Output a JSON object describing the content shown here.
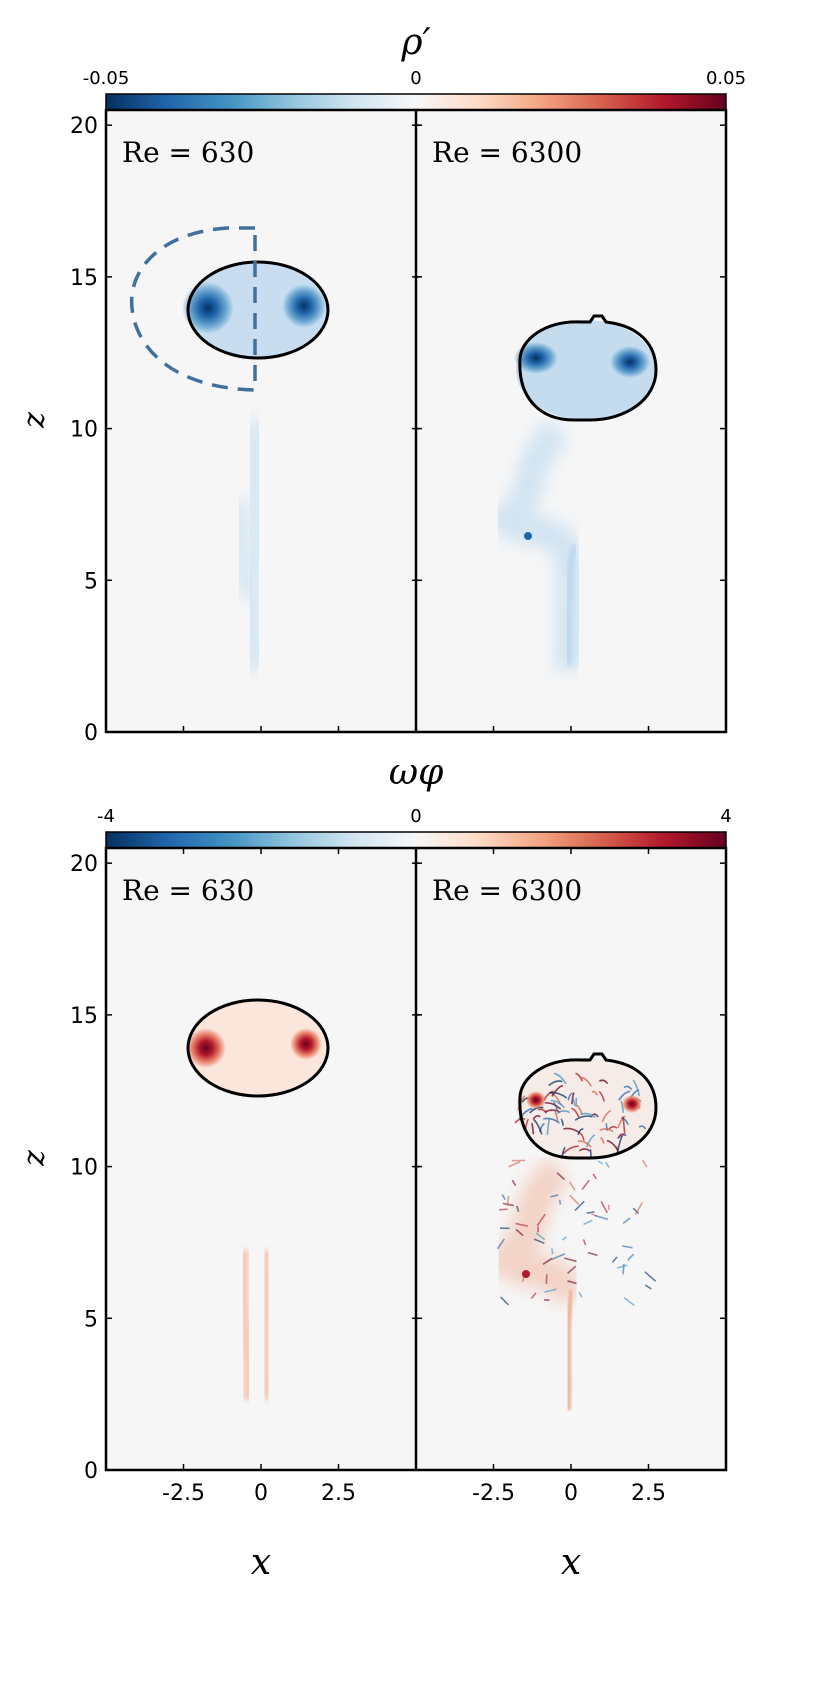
{
  "chart_data": [
    {
      "type": "heatmap",
      "title": "ρ′",
      "colorbar": {
        "min_label": "-0.05",
        "mid_label": "0",
        "max_label": "0.05",
        "min": -0.05,
        "max": 0.05,
        "colormap": "RdBu_r"
      },
      "ylabel": "z",
      "ylim": [
        0,
        20.5
      ],
      "yticks": [
        "0",
        "5",
        "10",
        "15",
        "20"
      ],
      "panels": [
        {
          "label": "Re = 630",
          "bubble": {
            "cx": -0.1,
            "cz": 13.6,
            "rx": 2.3,
            "rz": 1.55
          },
          "cores": [
            [
              -1.8,
              13.7,
              "blue"
            ],
            [
              1.3,
              13.7,
              "blue"
            ]
          ],
          "dashed_outline": true
        },
        {
          "label": "Re = 6300",
          "bubble": {
            "cx": 0.0,
            "cz": 11.7,
            "rx": 2.3,
            "rz": 1.65
          },
          "cores": [
            [
              -1.2,
              12.0,
              "blue"
            ],
            [
              1.9,
              11.9,
              "blue"
            ]
          ],
          "turbulent": true
        }
      ]
    },
    {
      "type": "heatmap",
      "title": "ωφ",
      "colorbar": {
        "min_label": "-4",
        "mid_label": "0",
        "max_label": "4",
        "min": -4,
        "max": 4,
        "colormap": "RdBu_r"
      },
      "ylabel": "z",
      "xlabel": "x",
      "ylim": [
        0,
        20.5
      ],
      "yticks": [
        "0",
        "5",
        "10",
        "15",
        "20"
      ],
      "xticks": [
        "-2.5",
        "0",
        "2.5"
      ],
      "panels": [
        {
          "label": "Re = 630",
          "bubble": {
            "cx": -0.1,
            "cz": 13.6,
            "rx": 2.3,
            "rz": 1.55
          },
          "cores": [
            [
              -1.8,
              13.6,
              "red"
            ],
            [
              1.4,
              13.8,
              "red"
            ]
          ]
        },
        {
          "label": "Re = 6300",
          "bubble": {
            "cx": 0.0,
            "cz": 11.7,
            "rx": 2.3,
            "rz": 1.65
          },
          "cores": [
            [
              -1.3,
              11.9,
              "red"
            ],
            [
              2.0,
              11.8,
              "red"
            ]
          ],
          "turbulent": true
        }
      ]
    }
  ],
  "colors": {
    "blue": "#2166ac",
    "dark_blue": "#053061",
    "red": "#b2182b",
    "dark_red": "#67001f",
    "bg": "#f6f6f6",
    "dashed": "#41709f"
  }
}
